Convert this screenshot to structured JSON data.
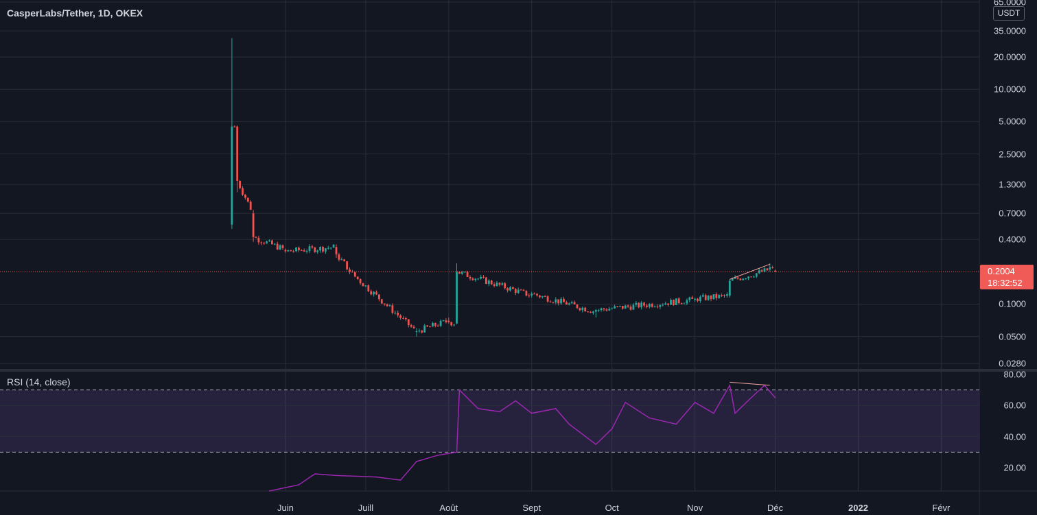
{
  "header": {
    "symbol_title": "CasperLabs/Tether, 1D, OKEX",
    "currency": "USDT"
  },
  "last_price": {
    "value": "0.2004",
    "countdown": "18:32:52",
    "color": "#f05b57"
  },
  "colors": {
    "background": "#131722",
    "up": "#26a69a",
    "down": "#ef5350",
    "rsi_line": "#9c27b0",
    "rsi_band": "#7e57c2",
    "grid": "#2a2e39",
    "trendline": "#f8a5a0"
  },
  "chart_data": [
    {
      "type": "candlestick",
      "scale": "log",
      "title": "CasperLabs/Tether, 1D, OKEX",
      "ylabel": "USDT",
      "y_ticks": [
        "65.0000",
        "35.0000",
        "20.0000",
        "10.0000",
        "5.0000",
        "2.5000",
        "1.3000",
        "0.7000",
        "0.4000",
        "0.2004",
        "0.1000",
        "0.0500",
        "0.0280"
      ],
      "x_ticks": [
        "Juin",
        "Juill",
        "Août",
        "Sept",
        "Oct",
        "Nov",
        "Déc",
        "2022",
        "Févr"
      ],
      "ylim": [
        0.027,
        70
      ],
      "key_points": [
        {
          "date": "2021-05-12",
          "open": 0.55,
          "high": 30,
          "low": 0.5,
          "close": 4.5
        },
        {
          "date": "2021-05-14",
          "open": 4.5,
          "high": 4.6,
          "low": 1.1,
          "close": 1.4
        },
        {
          "date": "2021-05-20",
          "open": 0.7,
          "high": 0.75,
          "low": 0.38,
          "close": 0.42
        },
        {
          "date": "2021-06-01",
          "open": 0.32,
          "high": 0.33,
          "low": 0.3,
          "close": 0.31
        },
        {
          "date": "2021-06-20",
          "open": 0.34,
          "high": 0.36,
          "low": 0.27,
          "close": 0.29
        },
        {
          "date": "2021-06-25",
          "open": 0.21,
          "high": 0.22,
          "low": 0.19,
          "close": 0.2
        },
        {
          "date": "2021-07-20",
          "open": 0.055,
          "high": 0.06,
          "low": 0.05,
          "close": 0.056
        },
        {
          "date": "2021-08-01",
          "open": 0.07,
          "high": 0.075,
          "low": 0.066,
          "close": 0.068
        },
        {
          "date": "2021-08-04",
          "open": 0.066,
          "high": 0.24,
          "low": 0.065,
          "close": 0.2
        },
        {
          "date": "2021-09-01",
          "open": 0.12,
          "high": 0.13,
          "low": 0.115,
          "close": 0.125
        },
        {
          "date": "2021-09-25",
          "open": 0.085,
          "high": 0.09,
          "low": 0.075,
          "close": 0.088
        },
        {
          "date": "2021-11-01",
          "open": 0.11,
          "high": 0.115,
          "low": 0.105,
          "close": 0.112
        },
        {
          "date": "2021-11-14",
          "open": 0.12,
          "high": 0.17,
          "low": 0.115,
          "close": 0.165
        },
        {
          "date": "2021-11-29",
          "open": 0.21,
          "high": 0.24,
          "low": 0.2,
          "close": 0.22
        },
        {
          "date": "2021-12-01",
          "open": 0.205,
          "high": 0.21,
          "low": 0.198,
          "close": 0.2004
        }
      ]
    },
    {
      "type": "line",
      "title": "RSI (14, close)",
      "ylim": [
        5,
        80
      ],
      "y_ticks": [
        "80.00",
        "60.00",
        "40.00",
        "20.00"
      ],
      "band": [
        30,
        70
      ],
      "series": [
        {
          "name": "RSI (14, close)",
          "points": [
            {
              "date": "2021-05-26",
              "value": 5
            },
            {
              "date": "2021-06-06",
              "value": 9
            },
            {
              "date": "2021-06-12",
              "value": 16
            },
            {
              "date": "2021-06-20",
              "value": 15
            },
            {
              "date": "2021-07-05",
              "value": 14
            },
            {
              "date": "2021-07-14",
              "value": 12
            },
            {
              "date": "2021-07-20",
              "value": 24
            },
            {
              "date": "2021-07-28",
              "value": 28
            },
            {
              "date": "2021-08-04",
              "value": 30
            },
            {
              "date": "2021-08-05",
              "value": 70
            },
            {
              "date": "2021-08-12",
              "value": 58
            },
            {
              "date": "2021-08-20",
              "value": 56
            },
            {
              "date": "2021-08-26",
              "value": 63
            },
            {
              "date": "2021-09-01",
              "value": 55
            },
            {
              "date": "2021-09-10",
              "value": 58
            },
            {
              "date": "2021-09-15",
              "value": 48
            },
            {
              "date": "2021-09-25",
              "value": 35
            },
            {
              "date": "2021-10-01",
              "value": 45
            },
            {
              "date": "2021-10-06",
              "value": 62
            },
            {
              "date": "2021-10-15",
              "value": 52
            },
            {
              "date": "2021-10-25",
              "value": 48
            },
            {
              "date": "2021-11-01",
              "value": 62
            },
            {
              "date": "2021-11-08",
              "value": 55
            },
            {
              "date": "2021-11-14",
              "value": 73
            },
            {
              "date": "2021-11-16",
              "value": 55
            },
            {
              "date": "2021-11-22",
              "value": 65
            },
            {
              "date": "2021-11-27",
              "value": 73
            },
            {
              "date": "2021-12-01",
              "value": 65
            }
          ]
        }
      ]
    }
  ]
}
